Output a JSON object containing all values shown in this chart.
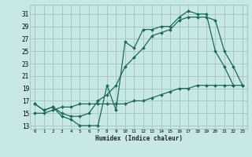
{
  "background_color": "#c8e8e8",
  "grid_color": "#a8c8c8",
  "line_color": "#1a6a5a",
  "xlim": [
    -0.5,
    23.5
  ],
  "ylim": [
    12.5,
    32.5
  ],
  "xtick_labels": [
    "0",
    "1",
    "2",
    "3",
    "4",
    "5",
    "6",
    "7",
    "8",
    "9",
    "10",
    "11",
    "12",
    "13",
    "14",
    "15",
    "16",
    "17",
    "18",
    "19",
    "20",
    "21",
    "22",
    "23"
  ],
  "ytick_values": [
    13,
    15,
    17,
    19,
    21,
    23,
    25,
    27,
    29,
    31
  ],
  "xlabel": "Humidex (Indice chaleur)",
  "line1_x": [
    0,
    1,
    2,
    3,
    4,
    5,
    6,
    7,
    8,
    9,
    10,
    11,
    12,
    13,
    14,
    15,
    16,
    17,
    18,
    19,
    20,
    21,
    22,
    23
  ],
  "line1_y": [
    16.5,
    15.5,
    16.0,
    14.5,
    14.0,
    13.0,
    13.0,
    13.0,
    19.5,
    15.5,
    26.5,
    25.5,
    28.5,
    28.5,
    29.0,
    29.0,
    30.5,
    31.5,
    31.0,
    31.0,
    25.0,
    22.5,
    19.5,
    null
  ],
  "line2_x": [
    0,
    1,
    2,
    3,
    4,
    5,
    6,
    7,
    8,
    9,
    10,
    11,
    12,
    13,
    14,
    15,
    16,
    17,
    18,
    19,
    20,
    21,
    22,
    23
  ],
  "line2_y": [
    16.5,
    15.5,
    16.0,
    15.0,
    14.5,
    14.5,
    15.0,
    17.0,
    18.0,
    19.5,
    22.5,
    24.0,
    25.5,
    27.5,
    28.0,
    28.5,
    30.0,
    30.5,
    30.5,
    30.5,
    30.0,
    25.0,
    22.5,
    19.5
  ],
  "line3_x": [
    0,
    1,
    2,
    3,
    4,
    5,
    6,
    7,
    8,
    9,
    10,
    11,
    12,
    13,
    14,
    15,
    16,
    17,
    18,
    19,
    20,
    21,
    22,
    23
  ],
  "line3_y": [
    15.0,
    15.0,
    15.5,
    16.0,
    16.0,
    16.5,
    16.5,
    16.5,
    16.5,
    16.5,
    16.5,
    17.0,
    17.0,
    17.5,
    18.0,
    18.5,
    19.0,
    19.0,
    19.5,
    19.5,
    19.5,
    19.5,
    19.5,
    19.5
  ]
}
